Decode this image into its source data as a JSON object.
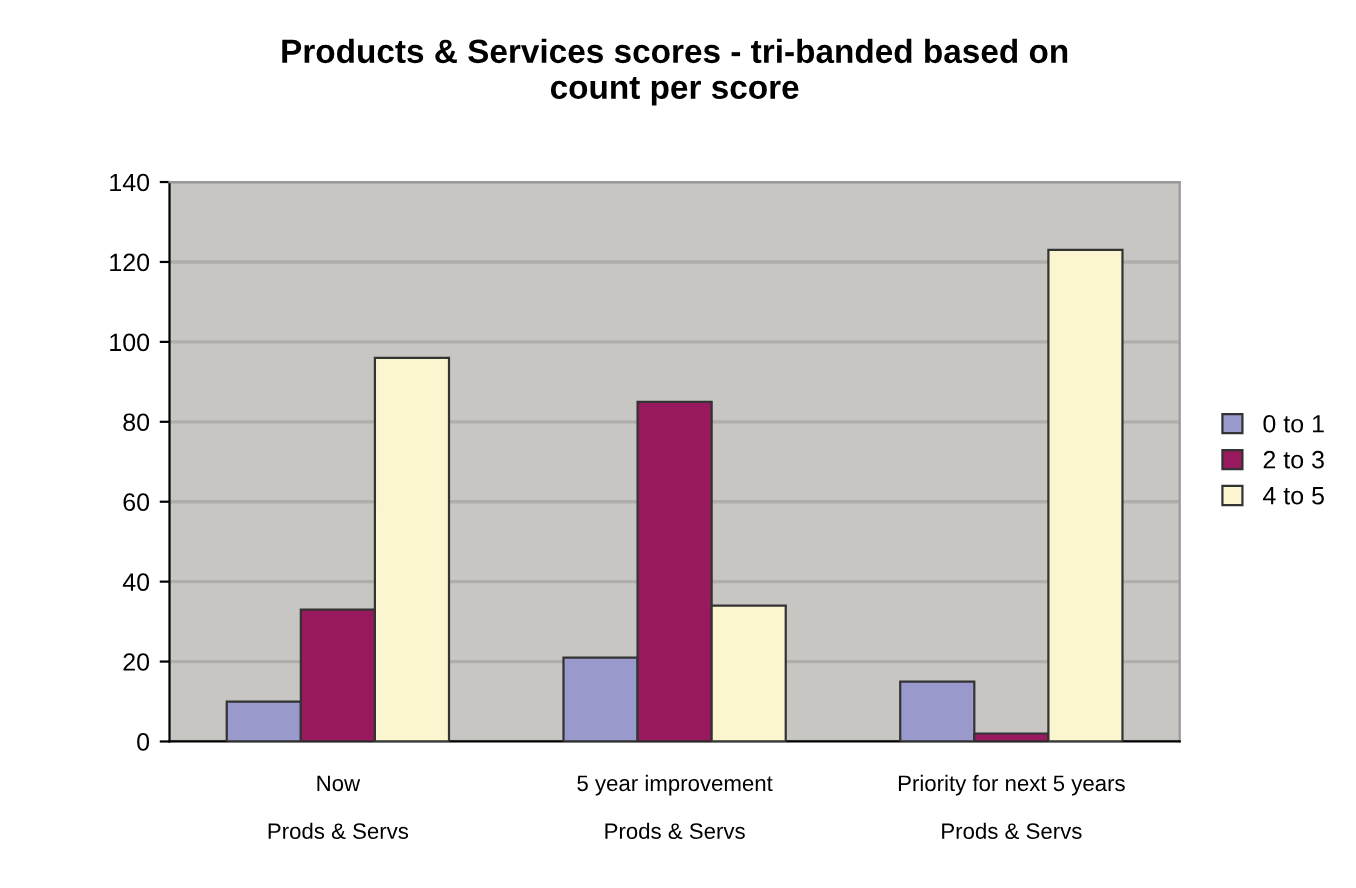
{
  "chart_data": {
    "type": "bar",
    "title": "Products & Services scores - tri-banded based on\ncount per score",
    "categories": [
      "Now\n\nProds & Servs",
      "5 year improvement\n\nProds & Servs",
      "Priority for next 5 years\n\nProds & Servs"
    ],
    "series": [
      {
        "name": "0 to 1",
        "color": "#9999cc",
        "values": [
          10,
          21,
          15
        ]
      },
      {
        "name": "2 to 3",
        "color": "#99195e",
        "values": [
          33,
          85,
          2
        ]
      },
      {
        "name": "4 to 5",
        "color": "#fbf6cf",
        "values": [
          96,
          34,
          123
        ]
      }
    ],
    "ylim": [
      0,
      140
    ],
    "yticks": [
      0,
      20,
      40,
      60,
      80,
      100,
      120,
      140
    ],
    "grid": "y",
    "legend": "right"
  }
}
